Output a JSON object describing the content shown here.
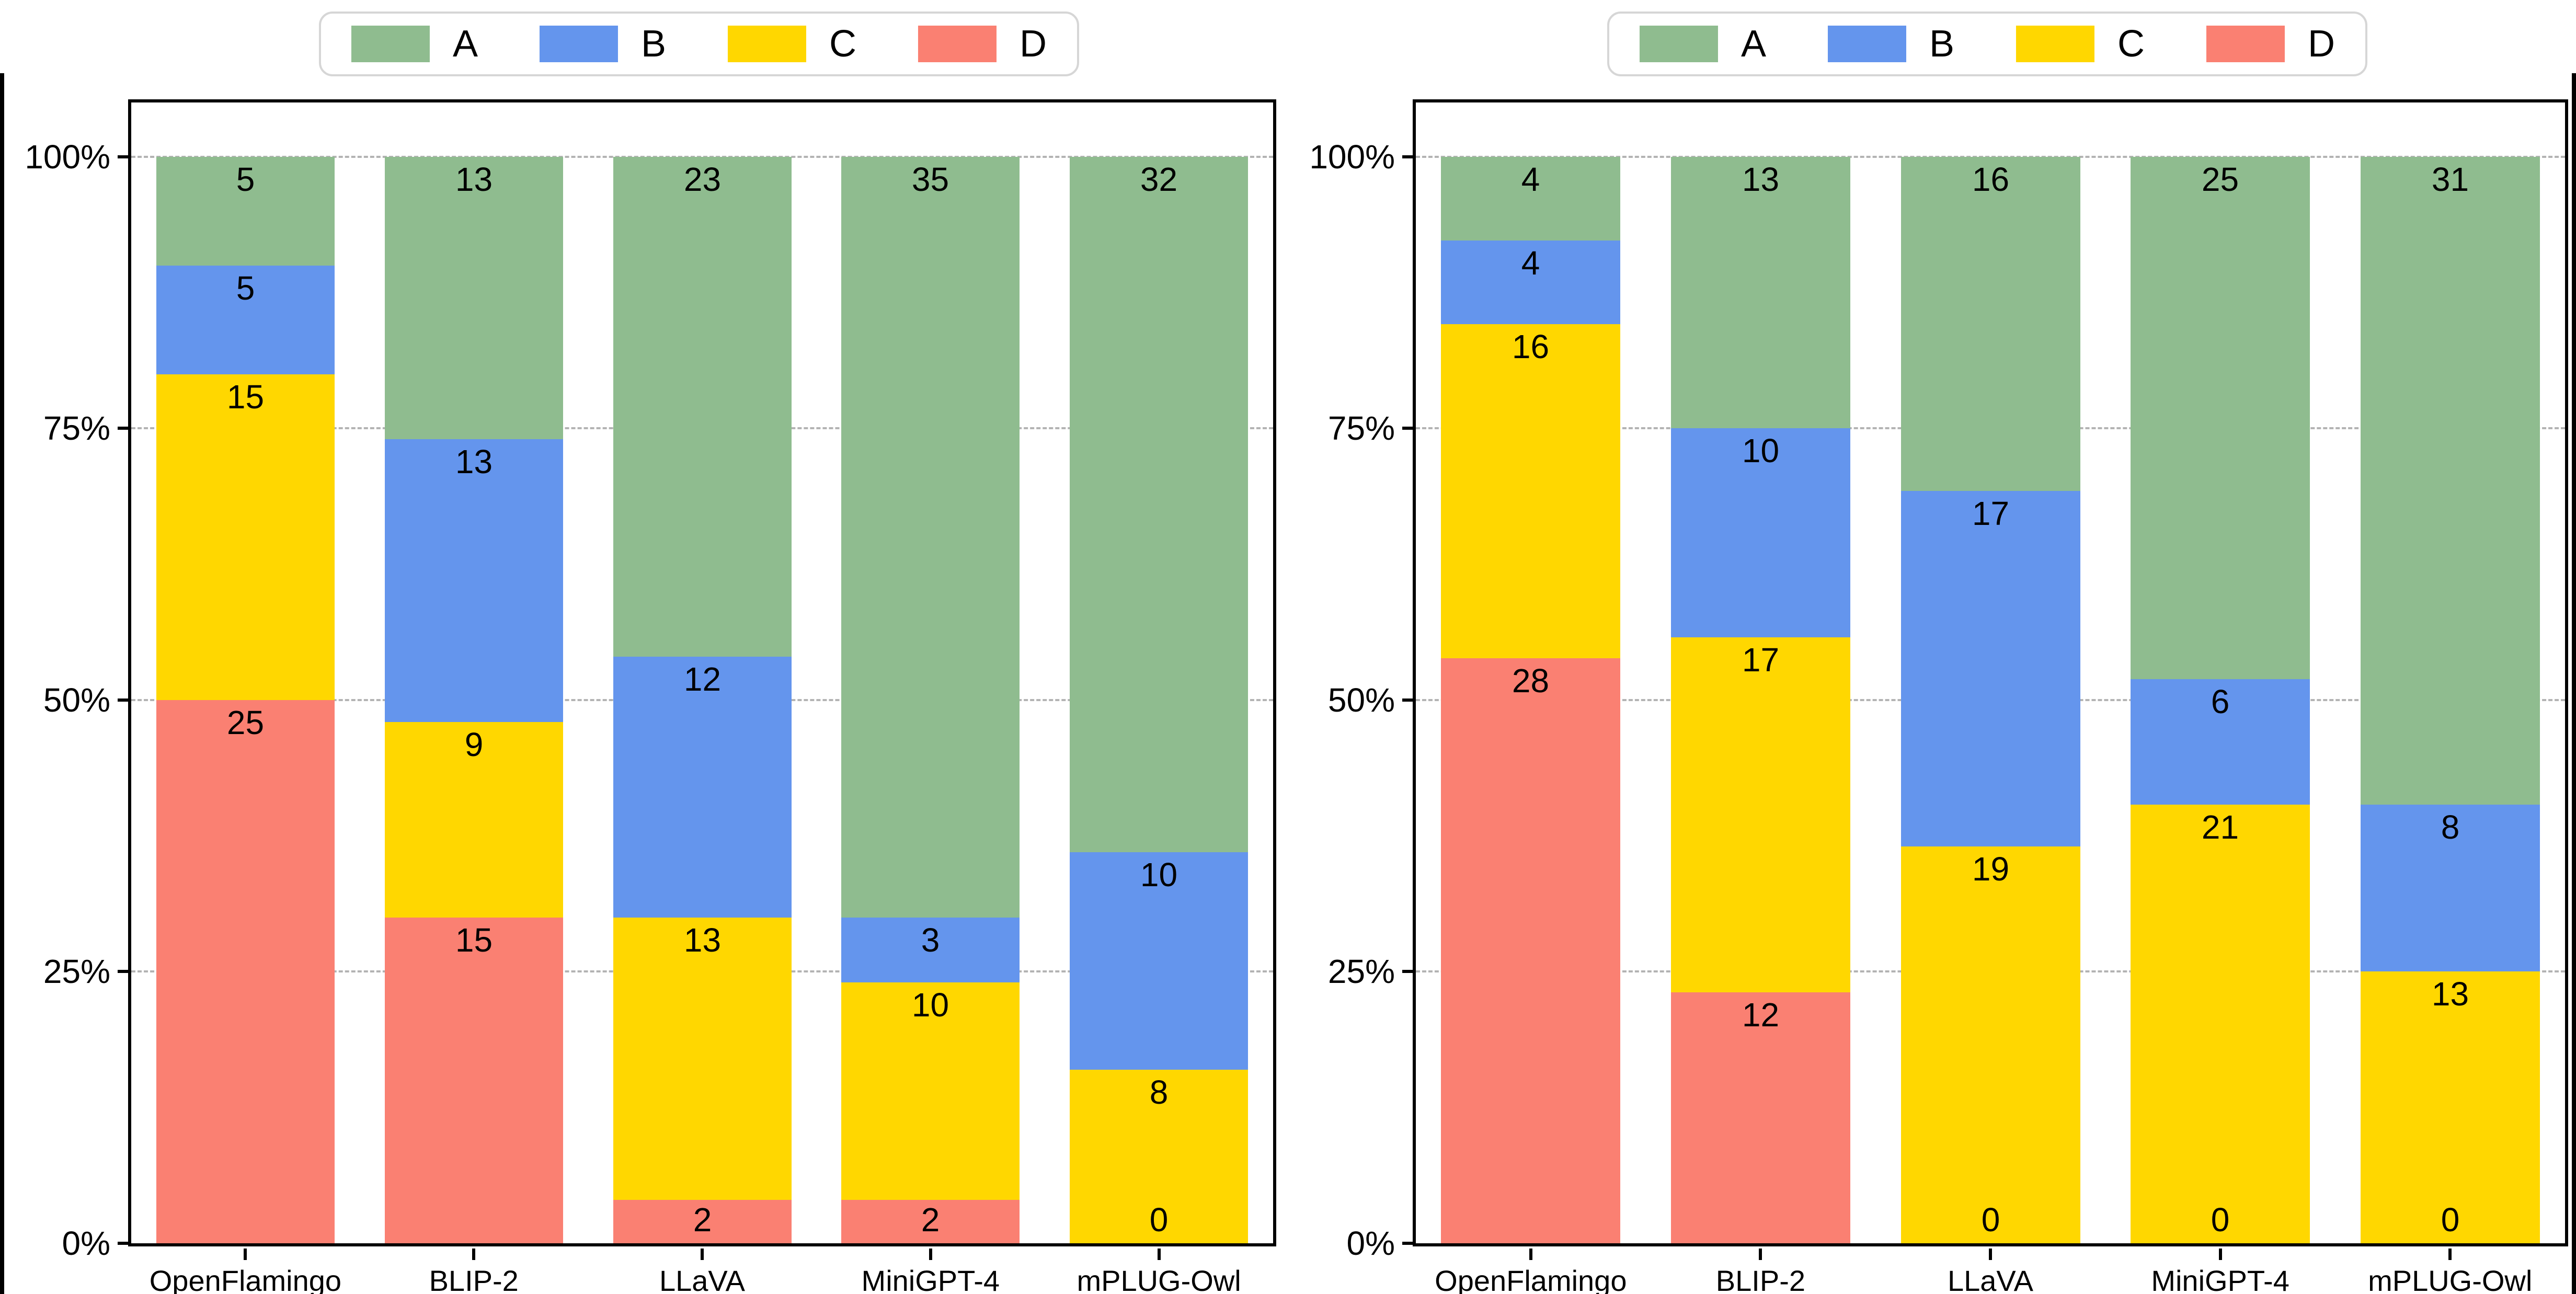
{
  "colors": {
    "A": "#8fbc8f",
    "B": "#6495ed",
    "C": "#ffd700",
    "D": "#fa8072",
    "grid": "#b3b3b3",
    "spine": "#000000",
    "legend_border": "#d6d6d6",
    "frame": "#000000",
    "background": "#ffffff"
  },
  "chart_data": [
    {
      "type": "bar",
      "subtype": "stacked-percent-column",
      "title": "",
      "xlabel": "",
      "ylabel": "",
      "categories": [
        "OpenFlamingo",
        "BLIP-2",
        "LLaVA",
        "MiniGPT-4",
        "mPLUG-Owl"
      ],
      "series": [
        {
          "name": "A",
          "color": "#8fbc8f",
          "values": [
            5,
            13,
            23,
            35,
            32
          ]
        },
        {
          "name": "B",
          "color": "#6495ed",
          "values": [
            5,
            13,
            12,
            3,
            10
          ]
        },
        {
          "name": "C",
          "color": "#ffd700",
          "values": [
            15,
            9,
            13,
            10,
            8
          ]
        },
        {
          "name": "D",
          "color": "#fa8072",
          "values": [
            25,
            15,
            2,
            2,
            0
          ]
        }
      ],
      "stack_order_bottom_to_top": [
        "D",
        "C",
        "B",
        "A"
      ],
      "y_ticks": [
        {
          "pct": 0,
          "label": "0%"
        },
        {
          "pct": 25,
          "label": "25%"
        },
        {
          "pct": 50,
          "label": "50%"
        },
        {
          "pct": 75,
          "label": "75%"
        },
        {
          "pct": 100,
          "label": "100%"
        }
      ],
      "grid_pcts": [
        25,
        50,
        75,
        100
      ],
      "ylim": [
        0,
        105
      ],
      "grid": "horizontal dashed",
      "legend": [
        "A",
        "B",
        "C",
        "D"
      ],
      "legend_position": "top center",
      "value_labels": "shown inside top of each segment, zeros shown at baseline"
    },
    {
      "type": "bar",
      "subtype": "stacked-percent-column",
      "title": "",
      "xlabel": "",
      "ylabel": "",
      "categories": [
        "OpenFlamingo",
        "BLIP-2",
        "LLaVA",
        "MiniGPT-4",
        "mPLUG-Owl"
      ],
      "series": [
        {
          "name": "A",
          "color": "#8fbc8f",
          "values": [
            4,
            13,
            16,
            25,
            31
          ]
        },
        {
          "name": "B",
          "color": "#6495ed",
          "values": [
            4,
            10,
            17,
            6,
            8
          ]
        },
        {
          "name": "C",
          "color": "#ffd700",
          "values": [
            16,
            17,
            19,
            21,
            13
          ]
        },
        {
          "name": "D",
          "color": "#fa8072",
          "values": [
            28,
            12,
            0,
            0,
            0
          ]
        }
      ],
      "stack_order_bottom_to_top": [
        "D",
        "C",
        "B",
        "A"
      ],
      "y_ticks": [
        {
          "pct": 0,
          "label": "0%"
        },
        {
          "pct": 25,
          "label": "25%"
        },
        {
          "pct": 50,
          "label": "50%"
        },
        {
          "pct": 75,
          "label": "75%"
        },
        {
          "pct": 100,
          "label": "100%"
        }
      ],
      "grid_pcts": [
        25,
        50,
        75,
        100
      ],
      "ylim": [
        0,
        105
      ],
      "grid": "horizontal dashed",
      "legend": [
        "A",
        "B",
        "C",
        "D"
      ],
      "legend_position": "top center",
      "value_labels": "shown inside top of each segment, zeros shown at baseline"
    }
  ]
}
